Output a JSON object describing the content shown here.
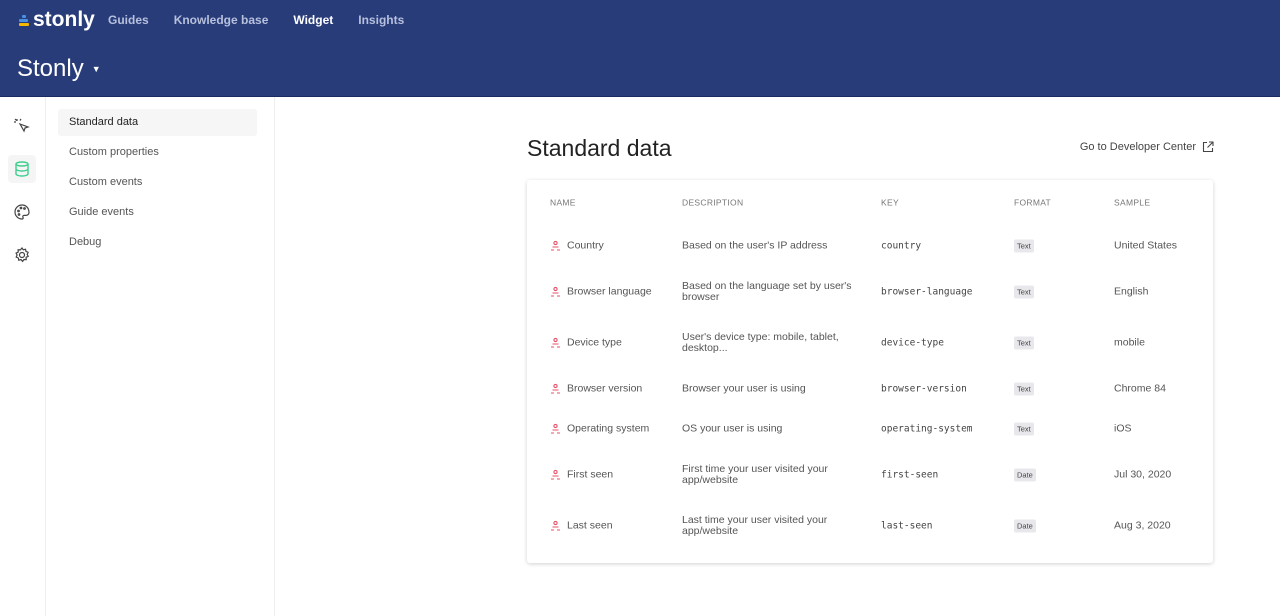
{
  "app": {
    "logo": "stonly",
    "nav": [
      {
        "label": "Guides",
        "active": false
      },
      {
        "label": "Knowledge base",
        "active": false
      },
      {
        "label": "Widget",
        "active": true
      },
      {
        "label": "Insights",
        "active": false
      }
    ],
    "org": "Stonly"
  },
  "rail": [
    {
      "icon": "cursor-click-icon"
    },
    {
      "icon": "database-icon",
      "active": true
    },
    {
      "icon": "palette-icon"
    },
    {
      "icon": "gear-icon"
    }
  ],
  "submenu": [
    {
      "label": "Standard data",
      "active": true
    },
    {
      "label": "Custom properties"
    },
    {
      "label": "Custom events"
    },
    {
      "label": "Guide events"
    },
    {
      "label": "Debug"
    }
  ],
  "page": {
    "title": "Standard data",
    "dev_link": "Go to Developer Center"
  },
  "colors": {
    "header": "#283c7a",
    "accent": "#3ecf8e",
    "row_icon": "#e8506a"
  },
  "table": {
    "headers": [
      "NAME",
      "DESCRIPTION",
      "KEY",
      "FORMAT",
      "SAMPLE"
    ],
    "rows": [
      {
        "name": "Country",
        "description": "Based on the user's IP address",
        "key": "country",
        "format": "Text",
        "sample": "United States"
      },
      {
        "name": "Browser language",
        "description": "Based on the language set by user's browser",
        "key": "browser-language",
        "format": "Text",
        "sample": "English"
      },
      {
        "name": "Device type",
        "description": "User's device type: mobile, tablet, desktop...",
        "key": "device-type",
        "format": "Text",
        "sample": "mobile"
      },
      {
        "name": "Browser version",
        "description": "Browser your user is using",
        "key": "browser-version",
        "format": "Text",
        "sample": "Chrome 84"
      },
      {
        "name": "Operating system",
        "description": "OS your user is using",
        "key": "operating-system",
        "format": "Text",
        "sample": "iOS"
      },
      {
        "name": "First seen",
        "description": "First time your user visited your app/website",
        "key": "first-seen",
        "format": "Date",
        "sample": "Jul 30, 2020"
      },
      {
        "name": "Last seen",
        "description": "Last time your user visited your app/website",
        "key": "last-seen",
        "format": "Date",
        "sample": "Aug 3, 2020"
      }
    ]
  }
}
